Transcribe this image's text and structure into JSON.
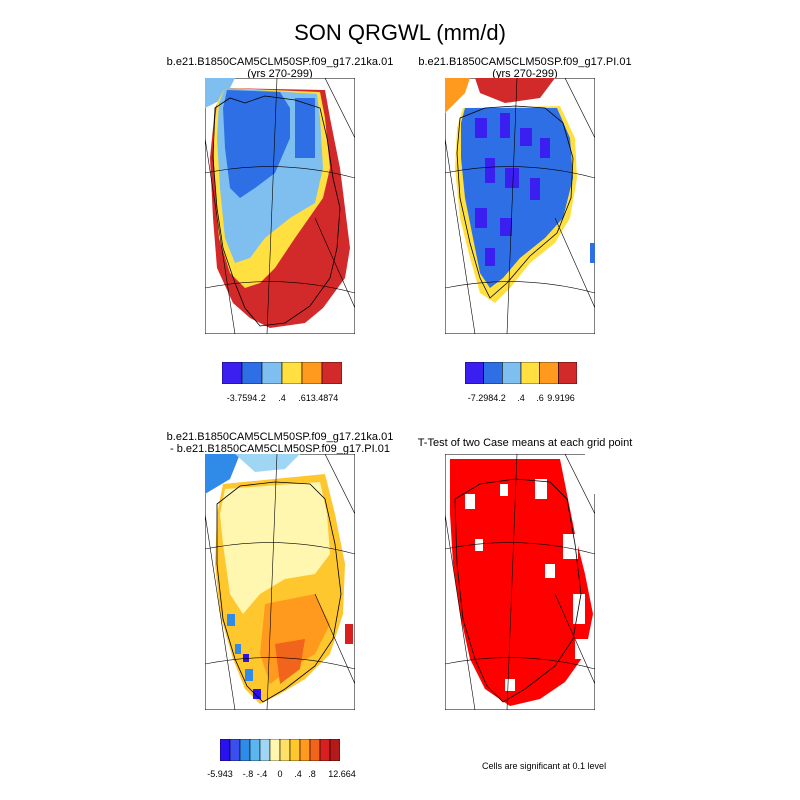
{
  "title": "SON QRGWL (mm/d)",
  "panels": [
    {
      "title_line1": "b.e21.B1850CAM5CLM50SP.f09_g17.21ka.01",
      "title_line2": "(yrs 270-299)"
    },
    {
      "title_line1": "b.e21.B1850CAM5CLM50SP.f09_g17.PI.01",
      "title_line2": "(yrs 270-299)"
    },
    {
      "title_line1": "b.e21.B1850CAM5CLM50SP.f09_g17.21ka.01",
      "title_line2": "- b.e21.B1850CAM5CLM50SP.f09_g17.PI.01"
    },
    {
      "title_line1": "T-Test of two Case means at each grid point",
      "title_line2": ""
    }
  ],
  "colorbars": {
    "top_left": {
      "colors": [
        "#3a1ff0",
        "#2e6fe6",
        "#7fbfef",
        "#ffe040",
        "#ff9a1e",
        "#d22a2a"
      ],
      "labels": [
        "-3.7594",
        ".2",
        ".4",
        ".6",
        "13.4874"
      ]
    },
    "top_right": {
      "colors": [
        "#3a1ff0",
        "#2e6fe6",
        "#7fbfef",
        "#ffe040",
        "#ff9a1e",
        "#d22a2a"
      ],
      "labels": [
        "-7.2984",
        ".2",
        ".4",
        ".6",
        "9.9196"
      ]
    },
    "bottom": {
      "colors": [
        "#2a12ef",
        "#3b4ef0",
        "#2f8ae8",
        "#5bb6ef",
        "#9fd6f4",
        "#fff7b0",
        "#ffe066",
        "#ffc72e",
        "#ff9a1e",
        "#f0641b",
        "#d82020",
        "#b51a1a"
      ],
      "labels": [
        "-5.943",
        "-.8",
        "-.4",
        "0",
        ".4",
        ".8",
        "12.664"
      ]
    }
  },
  "note": "Cells are significant at 0.1 level",
  "colors": {
    "red": "#ff0000",
    "blue": "#2e6fe6",
    "light_blue": "#7fbfef",
    "yellow": "#ffe040",
    "orange": "#ff9a1e",
    "dark_red": "#d22a2a"
  }
}
